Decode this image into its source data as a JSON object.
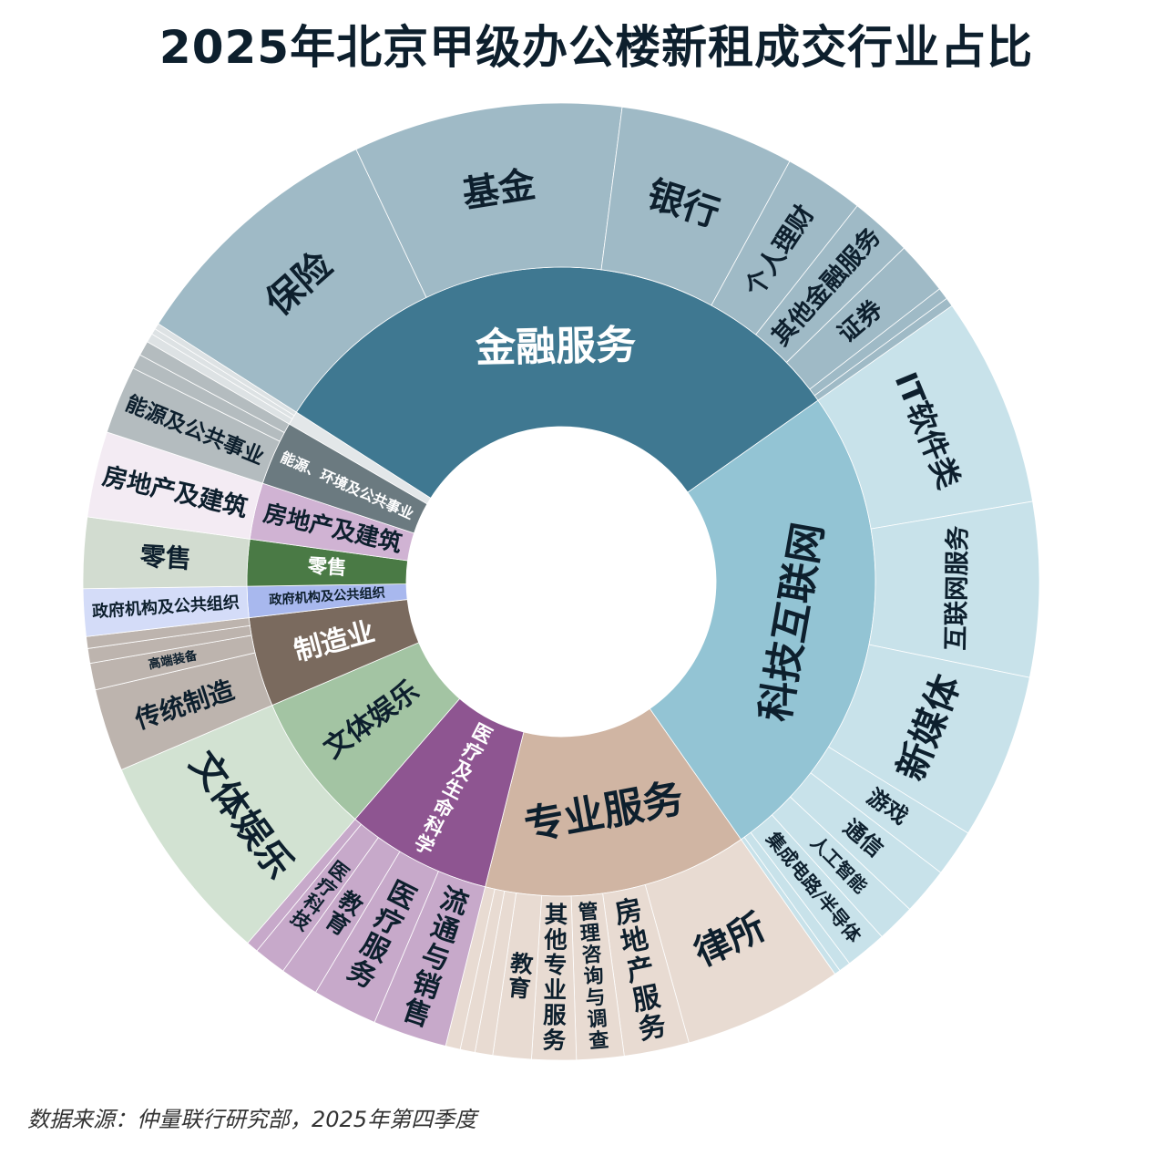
{
  "chart_data": {
    "type": "sunburst",
    "title": "2025年北京甲级办公楼新租成交行业占比",
    "unit": "%",
    "categories": [
      {
        "name": "金融服务",
        "value": 31.2,
        "color": "#3f7891",
        "child_color": "#9fbac6",
        "text_color": "#ffffff",
        "children": [
          {
            "name": "保险",
            "value": 8.9
          },
          {
            "name": "基金",
            "value": 9.1
          },
          {
            "name": "银行",
            "value": 5.9
          },
          {
            "name": "个人理财",
            "value": 2.7
          },
          {
            "name": "其他金融服务",
            "value": 2.1
          },
          {
            "name": "证券",
            "value": 1.8
          },
          {
            "value": 0.4
          },
          {
            "value": 0.3
          }
        ]
      },
      {
        "name": "科技互联网",
        "value": 25.1,
        "color": "#93c4d4",
        "child_color": "#c8e2ea",
        "text_color": "#0d1f2d",
        "children": [
          {
            "name": "IT软件类",
            "value": 7.1
          },
          {
            "name": "互联网服务",
            "value": 5.9
          },
          {
            "name": "新媒体",
            "value": 5.6
          },
          {
            "name": "游戏",
            "value": 1.6
          },
          {
            "name": "通信",
            "value": 1.6
          },
          {
            "name": "人工智能",
            "value": 1.3
          },
          {
            "name": "集成电路/半导体",
            "value": 1.4
          },
          {
            "value": 0.4
          },
          {
            "value": 0.2
          }
        ]
      },
      {
        "name": "专业服务",
        "value": 13.6,
        "color": "#d0b5a3",
        "child_color": "#e8dbd2",
        "text_color": "#0d1f2d",
        "children": [
          {
            "name": "律所",
            "value": 5.4
          },
          {
            "name": "房地产服务",
            "value": 2.2
          },
          {
            "name": "管理咨询与调查",
            "value": 1.6
          },
          {
            "name": "其他专业服务",
            "value": 1.5
          },
          {
            "name": "教育",
            "value": 1.3
          },
          {
            "value": 0.6
          },
          {
            "value": 0.5
          },
          {
            "value": 0.5
          }
        ]
      },
      {
        "name": "医疗及生命科学",
        "value": 7.5,
        "color": "#8e5591",
        "child_color": "#c7a9ca",
        "text_color": "#ffffff",
        "children": [
          {
            "name": "流通与销售",
            "value": 2.5
          },
          {
            "name": "医疗服务",
            "value": 2.2
          },
          {
            "name": "教育",
            "value": 1.3
          },
          {
            "name": "医疗科技",
            "value": 1.1
          },
          {
            "value": 0.4
          }
        ]
      },
      {
        "name": "文体娱乐",
        "value": 7.2,
        "color": "#a3c4a3",
        "child_color": "#d2e2d2",
        "text_color": "#0d1f2d",
        "children": [
          {
            "name": "文体娱乐",
            "value": 7.2
          }
        ]
      },
      {
        "name": "制造业",
        "value": 4.6,
        "color": "#7a6a5e",
        "child_color": "#bdb4ae",
        "text_color": "#ffffff",
        "children": [
          {
            "name": "传统制造",
            "value": 2.8
          },
          {
            "name": "高端装备",
            "value": 0.9
          },
          {
            "value": 0.5
          },
          {
            "value": 0.4
          }
        ]
      },
      {
        "name": "政府机构及公共组织",
        "value": 1.6,
        "color": "#a8b8ee",
        "child_color": "#d4dcf8",
        "text_color": "#0d1f2d",
        "children": [
          {
            "name": "政府机构及公共组织",
            "value": 1.6
          }
        ]
      },
      {
        "name": "零售",
        "value": 2.4,
        "color": "#4a7a45",
        "child_color": "#d2dcd0",
        "text_color": "#ffffff",
        "children": [
          {
            "name": "零售",
            "value": 2.4
          }
        ]
      },
      {
        "name": "房地产及建筑",
        "value": 2.9,
        "color": "#d0b3d3",
        "child_color": "#f3ebf3",
        "text_color": "#0d1f2d",
        "children": [
          {
            "name": "房地产及建筑",
            "value": 2.9
          }
        ]
      },
      {
        "name": "能源、环境及公共事业",
        "value": 3.3,
        "color": "#6b7a80",
        "child_color": "#b4bcbf",
        "text_color": "#ffffff",
        "children": [
          {
            "name": "能源及公共事业",
            "value": 2.3
          },
          {
            "value": 0.5
          },
          {
            "value": 0.5
          }
        ]
      },
      {
        "value": 0.7,
        "color": "#e3e7e9",
        "child_color": "#dde2e4",
        "text_color": "#0d1f2d",
        "children": [
          {
            "value": 0.3
          },
          {
            "value": 0.2
          },
          {
            "value": 0.2
          }
        ]
      }
    ]
  },
  "footer": {
    "source": "数据来源：仲量联行研究部，2025年第四季度"
  }
}
